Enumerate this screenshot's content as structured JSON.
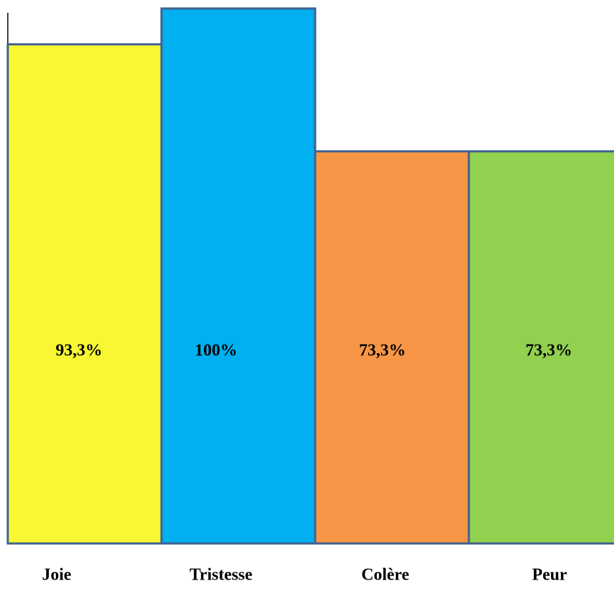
{
  "chart_data": {
    "type": "bar",
    "categories": [
      "Joie",
      "Tristesse",
      "Colère",
      "Peur"
    ],
    "values": [
      93.3,
      100,
      73.3,
      73.3
    ],
    "value_labels": [
      "93,3%",
      "100%",
      "73,3%",
      "73,3%"
    ],
    "colors": [
      "#f7f733",
      "#00b0f0",
      "#f79646",
      "#92d050"
    ],
    "ylim": [
      0,
      100
    ]
  }
}
